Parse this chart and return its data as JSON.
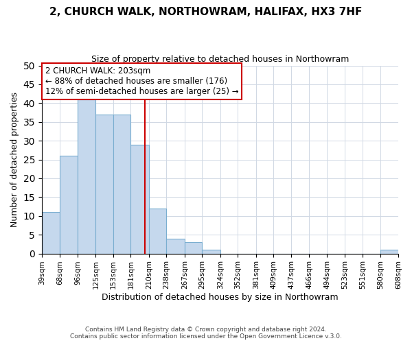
{
  "title": "2, CHURCH WALK, NORTHOWRAM, HALIFAX, HX3 7HF",
  "subtitle": "Size of property relative to detached houses in Northowram",
  "xlabel": "Distribution of detached houses by size in Northowram",
  "ylabel": "Number of detached properties",
  "footer_lines": [
    "Contains HM Land Registry data © Crown copyright and database right 2024.",
    "Contains public sector information licensed under the Open Government Licence v.3.0."
  ],
  "bins": [
    39,
    68,
    96,
    125,
    153,
    181,
    210,
    238,
    267,
    295,
    324,
    352,
    381,
    409,
    437,
    466,
    494,
    523,
    551,
    580,
    608
  ],
  "counts": [
    11,
    26,
    41,
    37,
    37,
    29,
    12,
    4,
    3,
    1,
    0,
    0,
    0,
    0,
    0,
    0,
    0,
    0,
    0,
    1
  ],
  "bar_color": "#c5d8ed",
  "bar_edge_color": "#7aaed0",
  "ref_line_x": 203,
  "ref_line_color": "#cc0000",
  "annotation_title": "2 CHURCH WALK: 203sqm",
  "annotation_line1": "← 88% of detached houses are smaller (176)",
  "annotation_line2": "12% of semi-detached houses are larger (25) →",
  "annotation_box_color": "#ffffff",
  "annotation_box_edge_color": "#cc0000",
  "ylim": [
    0,
    50
  ],
  "yticks": [
    0,
    5,
    10,
    15,
    20,
    25,
    30,
    35,
    40,
    45,
    50
  ],
  "background_color": "#ffffff",
  "grid_color": "#d0d8e4"
}
